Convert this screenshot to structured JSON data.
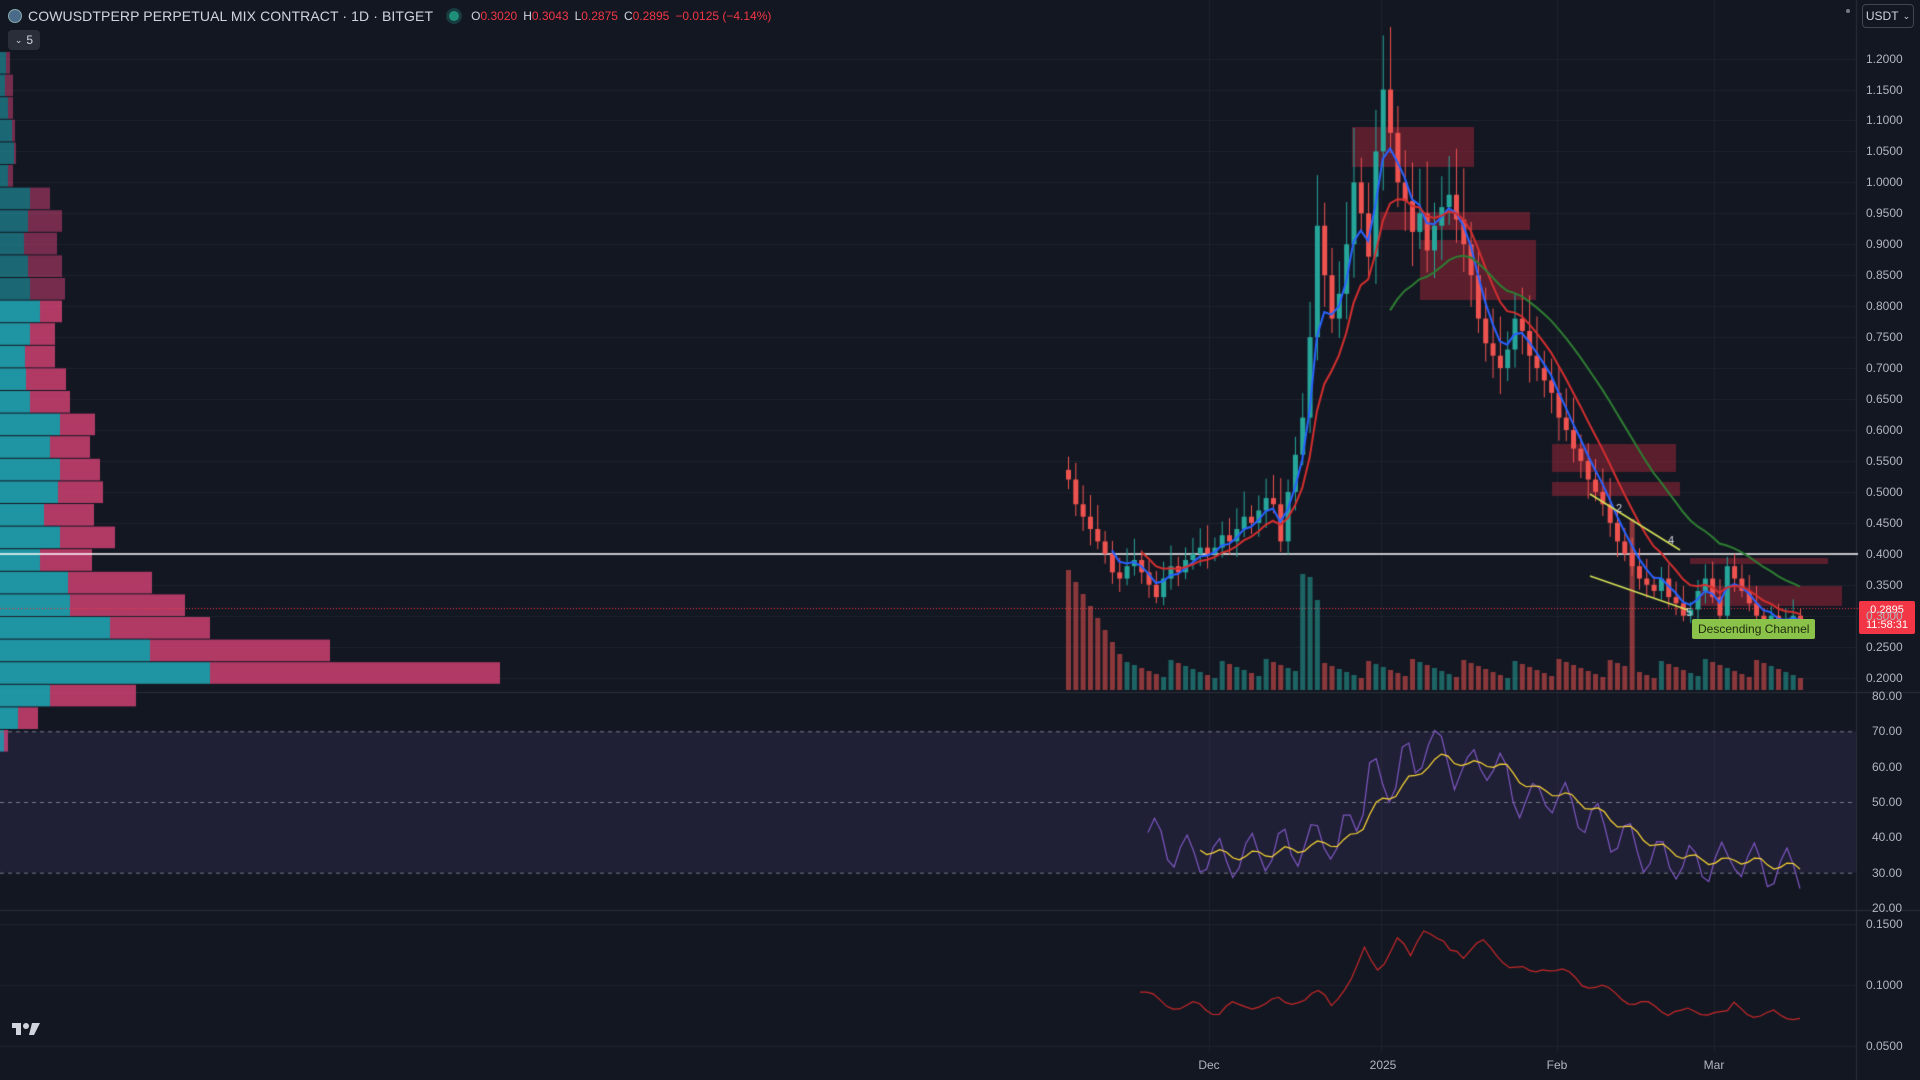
{
  "header": {
    "symbol_text": "COWUSDTPERP PERPETUAL MIX CONTRACT · 1D · BITGET",
    "open_key": "O",
    "open": "0.3020",
    "high_key": "H",
    "high": "0.3043",
    "low_key": "L",
    "low": "0.2875",
    "close_key": "C",
    "close": "0.2895",
    "change": "−0.0125 (−4.14%)"
  },
  "indicator_toggle": {
    "label": "5"
  },
  "currency": {
    "label": "USDT"
  },
  "price_tag": {
    "price": "0.2895",
    "countdown": "11:58:31"
  },
  "annotation": {
    "channel_label": "Descending Channel",
    "wave_labels": [
      "2",
      "4",
      "5"
    ]
  },
  "price_axis": {
    "ticks": [
      "1.2000",
      "1.1500",
      "1.1000",
      "1.0500",
      "1.0000",
      "0.9500",
      "0.9000",
      "0.8500",
      "0.8000",
      "0.7500",
      "0.7000",
      "0.6500",
      "0.6000",
      "0.5500",
      "0.5000",
      "0.4500",
      "0.4000",
      "0.3500",
      "0.3000",
      "0.2500",
      "0.2000"
    ]
  },
  "rsi_axis": {
    "ticks": [
      "80.00",
      "70.00",
      "60.00",
      "50.00",
      "40.00",
      "30.00",
      "20.00"
    ]
  },
  "lower_axis": {
    "ticks": [
      "0.1500",
      "0.1000",
      "0.0500"
    ]
  },
  "time_axis": {
    "ticks": [
      "Dec",
      "2025",
      "Feb",
      "Mar"
    ]
  },
  "colors": {
    "up": "#26a69a",
    "down": "#ef5350",
    "ema_fast": "#2962ff",
    "ema_mid": "#d32f2f",
    "ema_slow": "#2e7d32",
    "rsi": "#7e57c2",
    "rsi_ma": "#fdd835",
    "vp_up": "#22aab8",
    "vp_down": "#d94477",
    "lower_line": "#c62828",
    "channel": "#d4e157"
  },
  "chart_data": {
    "type": "candlestick",
    "closes": [
      0.52,
      0.48,
      0.46,
      0.44,
      0.42,
      0.4,
      0.37,
      0.36,
      0.38,
      0.39,
      0.37,
      0.35,
      0.33,
      0.36,
      0.38,
      0.37,
      0.39,
      0.4,
      0.41,
      0.4,
      0.41,
      0.43,
      0.42,
      0.44,
      0.46,
      0.45,
      0.47,
      0.49,
      0.48,
      0.42,
      0.5,
      0.56,
      0.62,
      0.75,
      0.93,
      0.85,
      0.78,
      0.82,
      0.9,
      1.0,
      0.95,
      0.88,
      1.05,
      1.15,
      1.08,
      1.0,
      0.97,
      0.92,
      0.95,
      0.89,
      0.93,
      0.96,
      0.98,
      0.94,
      0.9,
      0.85,
      0.78,
      0.74,
      0.72,
      0.7,
      0.73,
      0.78,
      0.76,
      0.72,
      0.7,
      0.68,
      0.66,
      0.62,
      0.6,
      0.57,
      0.55,
      0.52,
      0.5,
      0.48,
      0.45,
      0.42,
      0.4,
      0.38,
      0.36,
      0.35,
      0.34,
      0.36,
      0.33,
      0.32,
      0.3,
      0.31,
      0.34,
      0.36,
      0.33,
      0.3,
      0.38,
      0.36,
      0.34,
      0.32,
      0.3,
      0.29,
      0.3,
      0.28,
      0.29,
      0.3,
      0.29
    ],
    "rsi_ylim": [
      20,
      80
    ],
    "price_ylim": [
      0.18,
      1.23
    ]
  }
}
